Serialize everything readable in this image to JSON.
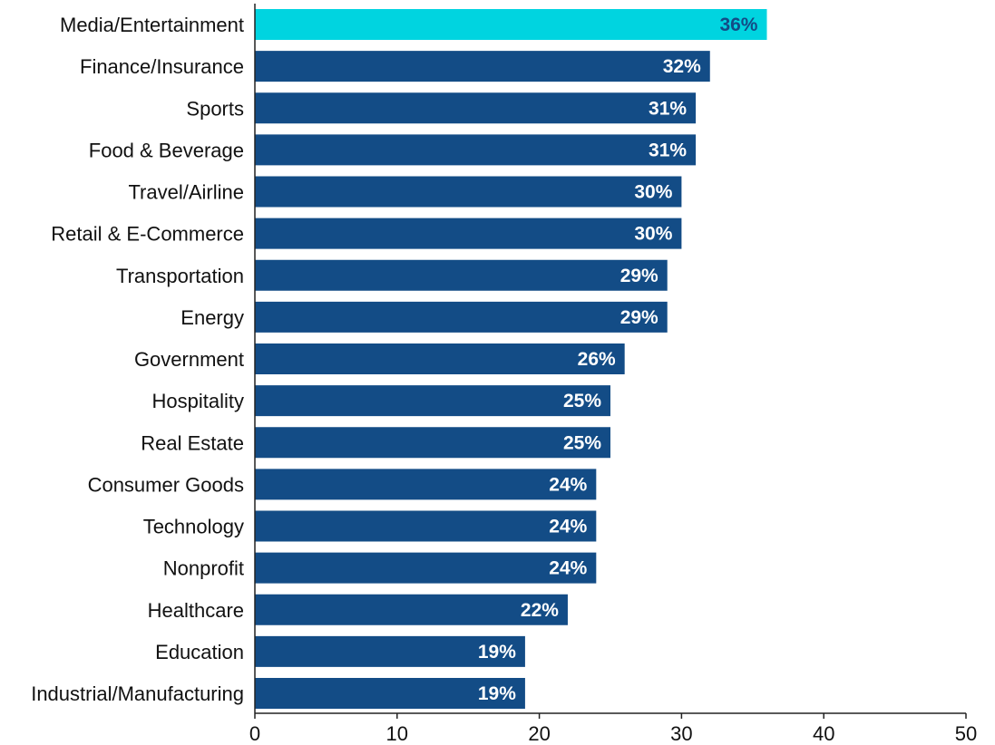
{
  "chart_data": {
    "type": "bar",
    "orientation": "horizontal",
    "title": "",
    "xlabel": "",
    "ylabel": "",
    "xlim": [
      0,
      50
    ],
    "x_ticks": [
      0,
      10,
      20,
      30,
      40,
      50
    ],
    "grid": false,
    "categories": [
      "Media/Entertainment",
      "Finance/Insurance",
      "Sports",
      "Food & Beverage",
      "Travel/Airline",
      "Retail & E-Commerce",
      "Transportation",
      "Energy",
      "Government",
      "Hospitality",
      "Real Estate",
      "Consumer Goods",
      "Technology",
      "Nonprofit",
      "Healthcare",
      "Education",
      "Industrial/Manufacturing"
    ],
    "values": [
      36,
      32,
      31,
      31,
      30,
      30,
      29,
      29,
      26,
      25,
      25,
      24,
      24,
      24,
      22,
      19,
      19
    ],
    "value_labels": [
      "36%",
      "32%",
      "31%",
      "31%",
      "30%",
      "30%",
      "29%",
      "29%",
      "26%",
      "25%",
      "25%",
      "24%",
      "24%",
      "24%",
      "22%",
      "19%",
      "19%"
    ],
    "highlight_index": 0,
    "colors": {
      "bar": "#134c86",
      "highlight": "#00d4e0",
      "label_on_bar": "#ffffff",
      "label_on_highlight": "#134c86",
      "axis": "#222222"
    }
  }
}
